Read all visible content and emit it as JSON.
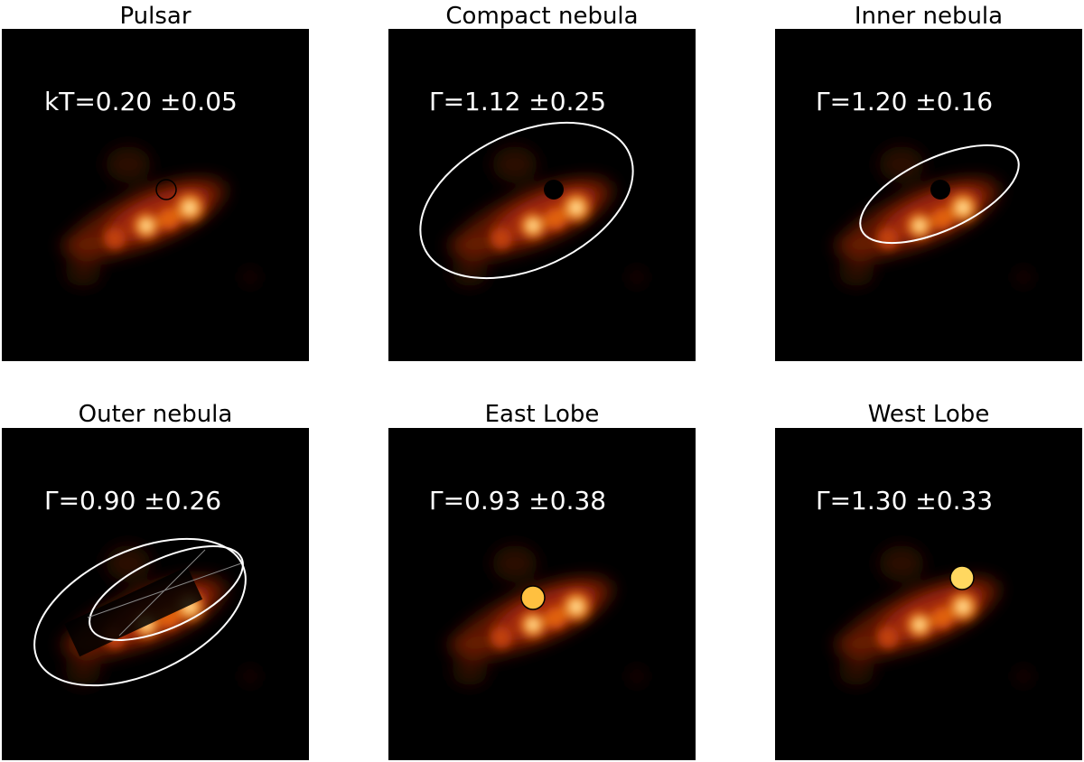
{
  "panels": [
    {
      "title": "Pulsar",
      "annotation": "kT=0.20 ±0.05"
    },
    {
      "title": "Compact nebula",
      "annotation": "Γ=1.12 ±0.25"
    },
    {
      "title": "Inner nebula",
      "annotation": "Γ=1.20 ±0.16"
    },
    {
      "title": "Outer nebula",
      "annotation": "Γ=0.90 ±0.26"
    },
    {
      "title": "East Lobe",
      "annotation": "Γ=0.93 ±0.38"
    },
    {
      "title": "West Lobe",
      "annotation": "Γ=1.30 ±0.33"
    }
  ]
}
